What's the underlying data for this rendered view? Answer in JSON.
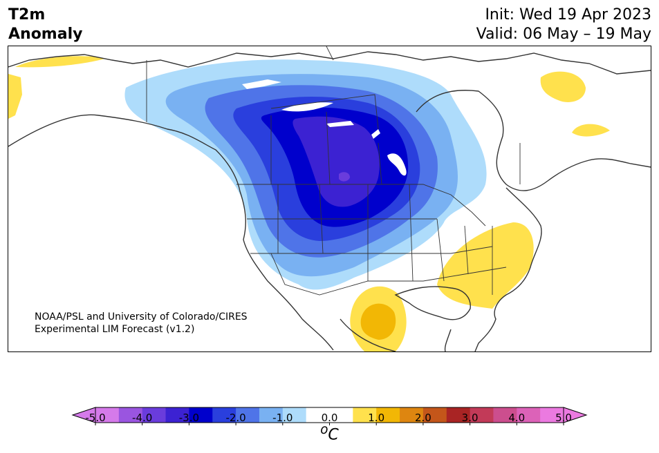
{
  "header": {
    "title_line1": "T2m",
    "title_line2": "Anomaly",
    "init": "Init: Wed 19 Apr 2023",
    "valid": "Valid: 06 May – 19 May"
  },
  "map": {
    "credit_line1": "NOAA/PSL and University of Colorado/CIRES",
    "credit_line2": "Experimental LIM Forecast (v1.2)"
  },
  "colorbar": {
    "unit": "oC",
    "unit_base": "C",
    "unit_sup": "o",
    "ticks": [
      "-5.0",
      "-4.0",
      "-3.0",
      "-2.0",
      "-1.0",
      "0.0",
      "1.0",
      "2.0",
      "3.0",
      "4.0",
      "5.0"
    ],
    "colors": [
      "#d57aea",
      "#9a55e0",
      "#6a3cdc",
      "#3c22d2",
      "#0000cc",
      "#2a3fdd",
      "#4f74e8",
      "#79b1f2",
      "#aedcfb",
      "#ffffff",
      "#ffffff",
      "#ffe14d",
      "#f2b705",
      "#de8610",
      "#c4561a",
      "#a92424",
      "#c23a58",
      "#cc4e8e",
      "#dc62b8",
      "#eb7ae0"
    ],
    "under_color": "#d57aea",
    "over_color": "#eb7ae0"
  }
}
